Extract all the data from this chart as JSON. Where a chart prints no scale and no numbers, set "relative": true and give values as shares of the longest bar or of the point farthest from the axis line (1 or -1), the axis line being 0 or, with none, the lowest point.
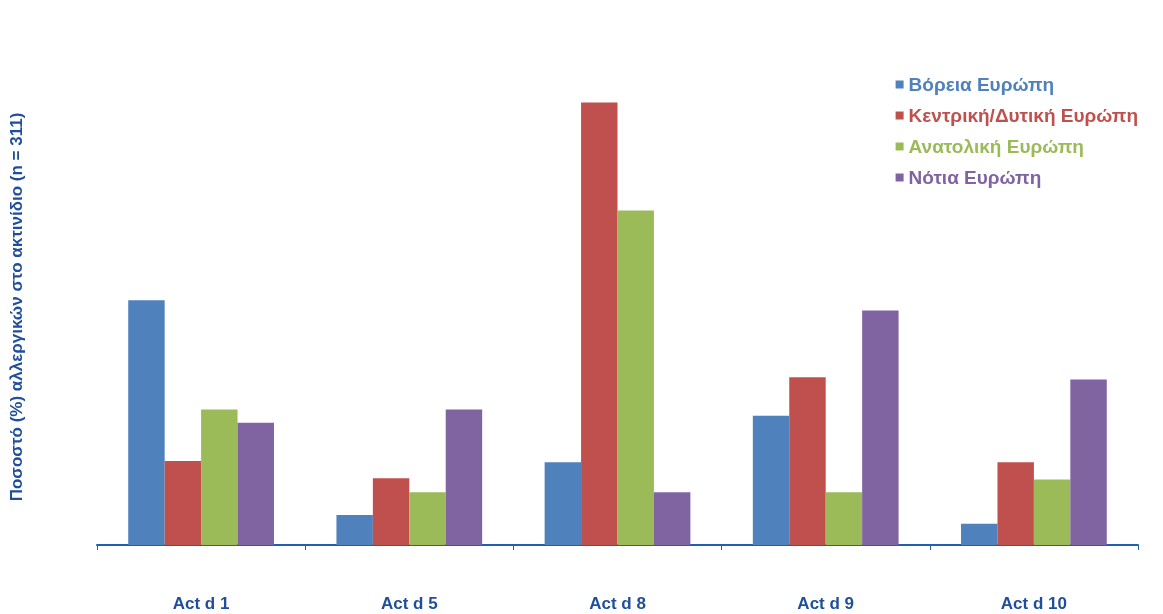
{
  "chart_data": {
    "type": "bar",
    "ylabel": "Ποσοστό (%) αλλεργικών στο ακτινίδιο (n = 311)",
    "categories": [
      "Act d 1",
      "Act d 5",
      "Act d 8",
      "Act d 9",
      "Act d 10"
    ],
    "relative": true,
    "legend": "top right",
    "series": [
      {
        "name": "Βόρεια Ευρώπη",
        "color": "#4f81bd",
        "values": [
          0.553,
          0.068,
          0.187,
          0.292,
          0.048
        ]
      },
      {
        "name": "Κεντρική/Δυτική Ευρώπη",
        "color": "#c0504d",
        "values": [
          0.19,
          0.151,
          1,
          0.379,
          0.187
        ]
      },
      {
        "name": "Ανατολική Ευρώπη",
        "color": "#9bbb59",
        "values": [
          0.306,
          0.119,
          0.756,
          0.119,
          0.148
        ]
      },
      {
        "name": "Νότια Ευρώπη",
        "color": "#8064a2",
        "values": [
          0.276,
          0.306,
          0.119,
          0.53,
          0.374
        ]
      }
    ]
  }
}
